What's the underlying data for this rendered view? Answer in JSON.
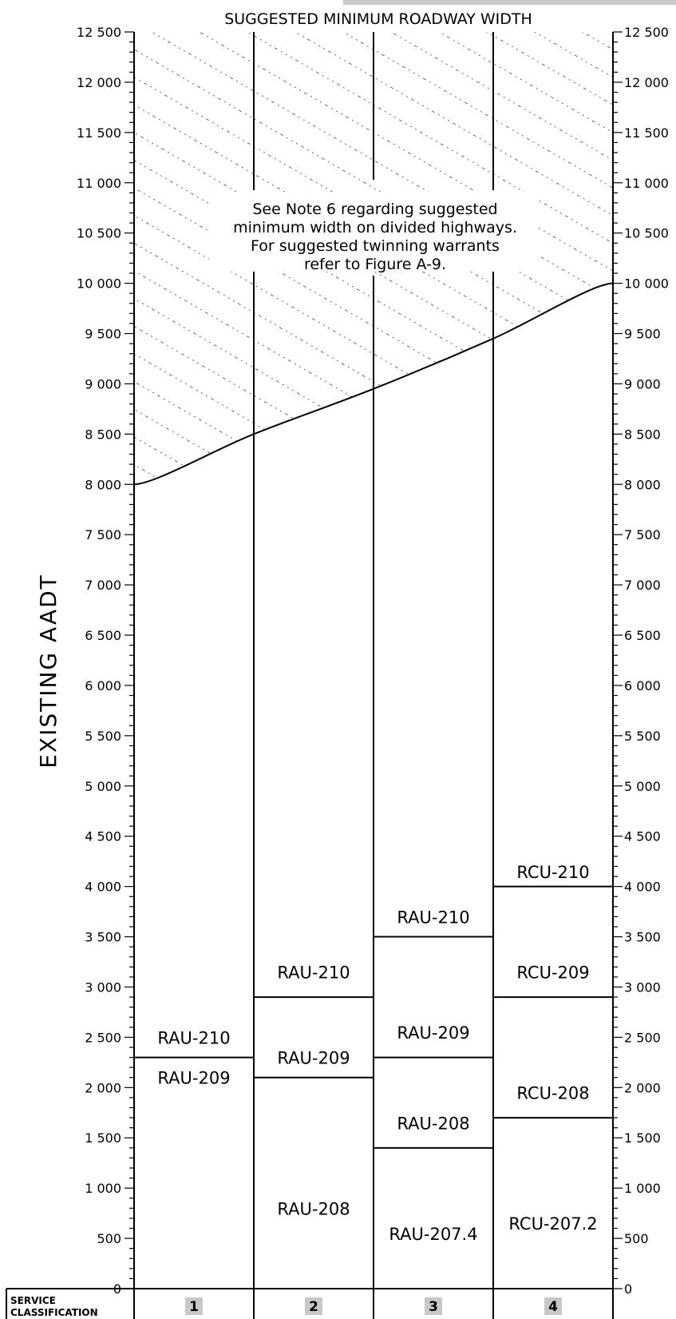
{
  "chart_data": {
    "type": "table",
    "title": "SUGGESTED MINIMUM ROADWAY WIDTH",
    "ylabel": "EXISTING AADT",
    "ylim": [
      0,
      12500
    ],
    "y_ticks_major": [
      0,
      500,
      1000,
      1500,
      2000,
      2500,
      3000,
      3500,
      4000,
      4500,
      5000,
      5500,
      6000,
      6500,
      7000,
      7500,
      8000,
      8500,
      9000,
      9500,
      10000,
      10500,
      11000,
      11500,
      12000,
      12500
    ],
    "y_tick_labels": [
      "0",
      "500",
      "1 000",
      "1 500",
      "2 000",
      "2 500",
      "3 000",
      "3 500",
      "4 000",
      "4 500",
      "5 000",
      "5 500",
      "6 000",
      "6 500",
      "7 000",
      "7 500",
      "8 000",
      "8 500",
      "9 000",
      "9 500",
      "10 000",
      "10 500",
      "11 000",
      "11 500",
      "12 000",
      "12 500"
    ],
    "y_minor_step": 100,
    "service_classification_label": [
      "SERVICE",
      "CLASSIFICATION"
    ],
    "columns": [
      {
        "service_class": "1",
        "boundaries": [
          2300
        ],
        "regions": [
          {
            "label": "RAU-209",
            "from": 0,
            "to": 2300,
            "label_at": 2100
          },
          {
            "label": "RAU-210",
            "from": 2300,
            "to": 8000,
            "label_at": 2500
          }
        ]
      },
      {
        "service_class": "2",
        "boundaries": [
          2100,
          2900
        ],
        "regions": [
          {
            "label": "RAU-208",
            "from": 0,
            "to": 2100,
            "label_at": 800
          },
          {
            "label": "RAU-209",
            "from": 2100,
            "to": 2900,
            "label_at": 2300
          },
          {
            "label": "RAU-210",
            "from": 2900,
            "to": 8500,
            "label_at": 3150
          }
        ]
      },
      {
        "service_class": "3",
        "boundaries": [
          1400,
          2300,
          3500
        ],
        "regions": [
          {
            "label": "RAU-207.4",
            "from": 0,
            "to": 1400,
            "label_at": 550
          },
          {
            "label": "RAU-208",
            "from": 1400,
            "to": 2300,
            "label_at": 1650
          },
          {
            "label": "RAU-209",
            "from": 2300,
            "to": 3500,
            "label_at": 2550
          },
          {
            "label": "RAU-210",
            "from": 3500,
            "to": 8950,
            "label_at": 3700
          }
        ]
      },
      {
        "service_class": "4",
        "boundaries": [
          1700,
          2900,
          4000
        ],
        "regions": [
          {
            "label": "RCU-207.2",
            "from": 0,
            "to": 1700,
            "label_at": 650
          },
          {
            "label": "RCU-208",
            "from": 1700,
            "to": 2900,
            "label_at": 1950
          },
          {
            "label": "RCU-209",
            "from": 2900,
            "to": 4000,
            "label_at": 3150
          },
          {
            "label": "RCU-210",
            "from": 4000,
            "to": 9450,
            "label_at": 4150
          }
        ]
      }
    ],
    "upper_limit_curve": {
      "x_at_column_edges": [
        0,
        1,
        2,
        3,
        4
      ],
      "aadt": [
        8000,
        8500,
        8950,
        9450,
        10000
      ]
    },
    "hatched_region": "above upper limit curve",
    "note": [
      "See Note 6 regarding suggested",
      "minimum width on divided highways.",
      "For suggested twinning warrants",
      "refer to Figure A-9."
    ]
  }
}
